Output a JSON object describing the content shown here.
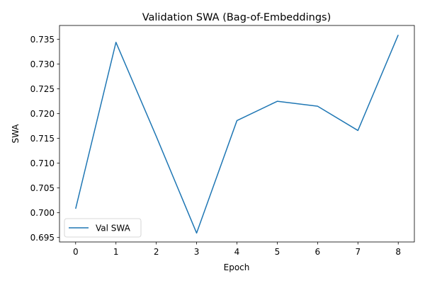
{
  "chart_data": {
    "type": "line",
    "title": "Validation SWA (Bag-of-Embeddings)",
    "xlabel": "Epoch",
    "ylabel": "SWA",
    "x": [
      0,
      1,
      2,
      3,
      4,
      5,
      6,
      7,
      8
    ],
    "xticks": [
      0,
      1,
      2,
      3,
      4,
      5,
      6,
      7,
      8
    ],
    "yticks": [
      0.695,
      0.7,
      0.705,
      0.71,
      0.715,
      0.72,
      0.725,
      0.73,
      0.735
    ],
    "ytick_labels": [
      "0.695",
      "0.700",
      "0.705",
      "0.710",
      "0.715",
      "0.720",
      "0.725",
      "0.730",
      "0.735"
    ],
    "xlim": [
      -0.4,
      8.4
    ],
    "ylim": [
      0.6941,
      0.7378
    ],
    "grid": false,
    "legend_position": "lower-left",
    "series": [
      {
        "name": "Val SWA",
        "color": "#1f77b4",
        "values": [
          0.7008,
          0.7344,
          0.7154,
          0.6959,
          0.7186,
          0.7225,
          0.7215,
          0.7166,
          0.7359
        ]
      }
    ]
  }
}
